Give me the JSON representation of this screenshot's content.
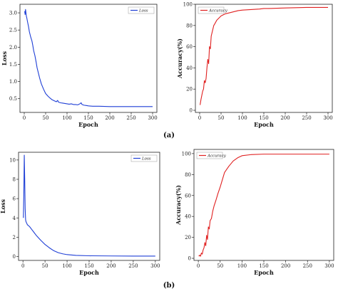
{
  "captions": [
    "(a)",
    "(b)"
  ],
  "colors": {
    "loss": "#1f3fd6",
    "accuracy": "#e02020",
    "frame": "#222222"
  },
  "chart_data": [
    {
      "type": "line",
      "xlabel": "Epoch",
      "ylabel": "Loss",
      "xlim": [
        -10,
        310
      ],
      "ylim": [
        0.1,
        3.25
      ],
      "xticks": [
        0,
        50,
        100,
        150,
        200,
        250,
        300
      ],
      "yticks": [
        0.5,
        1.0,
        1.5,
        2.0,
        2.5,
        3.0
      ],
      "ytick_labels": [
        "0.5",
        "1.0",
        "1.5",
        "2.0",
        "2.5",
        "3.0"
      ],
      "legend": "top-right",
      "series": [
        {
          "name": "Loss",
          "x": [
            1,
            2,
            3,
            4,
            5,
            6,
            8,
            10,
            12,
            15,
            18,
            20,
            22,
            25,
            28,
            30,
            33,
            36,
            40,
            45,
            50,
            55,
            60,
            65,
            70,
            75,
            78,
            80,
            85,
            90,
            95,
            100,
            105,
            110,
            115,
            120,
            125,
            130,
            133,
            135,
            140,
            145,
            150,
            160,
            175,
            200,
            250,
            300
          ],
          "y": [
            3.05,
            2.95,
            3.1,
            3.0,
            2.9,
            2.85,
            2.72,
            2.6,
            2.45,
            2.3,
            2.18,
            2.05,
            1.9,
            1.75,
            1.55,
            1.4,
            1.25,
            1.1,
            0.93,
            0.78,
            0.65,
            0.58,
            0.52,
            0.47,
            0.44,
            0.41,
            0.45,
            0.4,
            0.38,
            0.37,
            0.36,
            0.35,
            0.34,
            0.35,
            0.33,
            0.33,
            0.32,
            0.35,
            0.38,
            0.33,
            0.31,
            0.3,
            0.29,
            0.28,
            0.28,
            0.27,
            0.27,
            0.27
          ]
        }
      ]
    },
    {
      "type": "line",
      "xlabel": "Epoch",
      "ylabel": "Accuracy(%)",
      "xlim": [
        -10,
        310
      ],
      "ylim": [
        -2,
        100
      ],
      "xticks": [
        0,
        50,
        100,
        150,
        200,
        250,
        300
      ],
      "yticks": [
        0,
        20,
        40,
        60,
        80,
        100
      ],
      "ytick_labels": [
        "0",
        "20",
        "40",
        "60",
        "80",
        "100"
      ],
      "legend": "top-left",
      "series": [
        {
          "name": "Accuracy",
          "x": [
            1,
            3,
            5,
            7,
            9,
            11,
            13,
            15,
            17,
            19,
            21,
            23,
            25,
            27,
            30,
            33,
            36,
            40,
            45,
            50,
            55,
            60,
            70,
            80,
            90,
            100,
            120,
            140,
            150,
            160,
            200,
            250,
            300
          ],
          "y": [
            5,
            10,
            14,
            18,
            20,
            28,
            26,
            30,
            40,
            48,
            44,
            60,
            58,
            70,
            75,
            80,
            82,
            85,
            87,
            89,
            90,
            91,
            92,
            93,
            94,
            94.5,
            95,
            95.5,
            96,
            96,
            96.5,
            97,
            97
          ]
        }
      ]
    },
    {
      "type": "line",
      "xlabel": "Epoch",
      "ylabel": "Loss",
      "xlim": [
        -10,
        310
      ],
      "ylim": [
        -0.4,
        10.8
      ],
      "xticks": [
        0,
        50,
        100,
        150,
        200,
        250,
        300
      ],
      "yticks": [
        0,
        2,
        4,
        6,
        8,
        10
      ],
      "ytick_labels": [
        "0",
        "2",
        "4",
        "6",
        "8",
        "10"
      ],
      "legend": "top-right",
      "series": [
        {
          "name": "Loss",
          "x": [
            1,
            2,
            3,
            4,
            5,
            6,
            7,
            8,
            10,
            15,
            20,
            25,
            30,
            40,
            50,
            60,
            70,
            80,
            90,
            100,
            120,
            150,
            200,
            250,
            300
          ],
          "y": [
            4.0,
            6.5,
            10.5,
            8.0,
            5.0,
            3.8,
            3.6,
            3.5,
            3.3,
            3.1,
            2.8,
            2.5,
            2.2,
            1.7,
            1.25,
            0.9,
            0.6,
            0.4,
            0.28,
            0.2,
            0.12,
            0.08,
            0.06,
            0.05,
            0.05
          ]
        }
      ]
    },
    {
      "type": "line",
      "xlabel": "Epoch",
      "ylabel": "Accuracy(%)",
      "xlim": [
        -10,
        310
      ],
      "ylim": [
        -2,
        104
      ],
      "xticks": [
        0,
        50,
        100,
        150,
        200,
        250,
        300
      ],
      "yticks": [
        0,
        20,
        40,
        60,
        80,
        100
      ],
      "ytick_labels": [
        "0",
        "20",
        "40",
        "60",
        "80",
        "100"
      ],
      "legend": "top-left",
      "series": [
        {
          "name": "Accuracy",
          "x": [
            1,
            3,
            5,
            7,
            9,
            11,
            13,
            15,
            17,
            19,
            21,
            23,
            25,
            27,
            30,
            33,
            36,
            40,
            45,
            50,
            55,
            60,
            65,
            70,
            80,
            90,
            100,
            120,
            150,
            200,
            250,
            300
          ],
          "y": [
            2,
            3,
            2,
            5,
            4,
            8,
            10,
            15,
            12,
            22,
            18,
            30,
            28,
            36,
            38,
            45,
            50,
            55,
            62,
            68,
            75,
            82,
            85,
            88,
            93,
            96,
            98,
            99,
            99.5,
            99.5,
            99.5,
            99.5
          ]
        }
      ]
    }
  ]
}
